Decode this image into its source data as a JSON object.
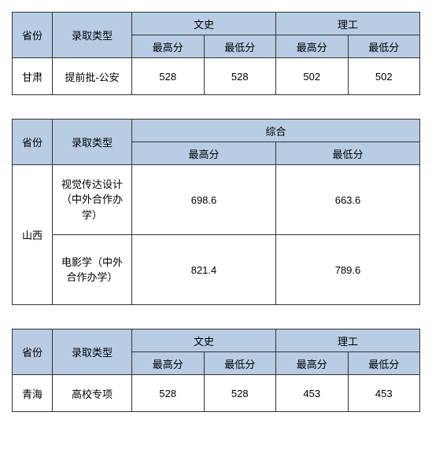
{
  "headers": {
    "province": "省份",
    "type": "录取类型",
    "wenshi": "文史",
    "ligong": "理工",
    "zonghe": "综合",
    "max": "最高分",
    "min": "最低分"
  },
  "table1": {
    "province": "甘肃",
    "type": "提前批-公安",
    "ws_max": "528",
    "ws_min": "528",
    "lg_max": "502",
    "lg_min": "502"
  },
  "table2": {
    "province": "山西",
    "row1": {
      "type": "视觉传达设计（中外合作办学）",
      "max": "698.6",
      "min": "663.6"
    },
    "row2": {
      "type": "电影学（中外合作办学）",
      "max": "821.4",
      "min": "789.6"
    }
  },
  "table3": {
    "province": "青海",
    "type": "高校专项",
    "ws_max": "528",
    "ws_min": "528",
    "lg_max": "453",
    "lg_min": "453"
  },
  "style": {
    "header_bg": "#b8cce4",
    "border_color": "#333333",
    "font_size": 13
  }
}
